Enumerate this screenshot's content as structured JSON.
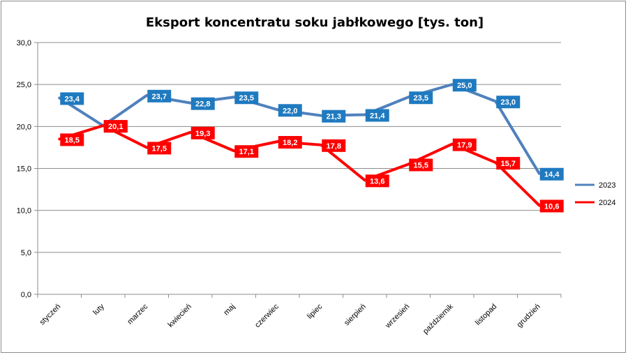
{
  "chart_data": {
    "type": "line",
    "title": "Eksport koncentratu soku jabłkowego [tys. ton]",
    "xlabel": "",
    "ylabel": "",
    "categories": [
      "styczeń",
      "luty",
      "marzec",
      "kwiecień",
      "maj",
      "czerwiec",
      "lipiec",
      "sierpień",
      "wrzesień",
      "październik",
      "listopad",
      "grudzień"
    ],
    "ylim": [
      0,
      30
    ],
    "yticks": [
      "0,0",
      "5,0",
      "10,0",
      "15,0",
      "20,0",
      "25,0",
      "30,0"
    ],
    "grid": true,
    "legend_position": "right",
    "series": [
      {
        "name": "2023",
        "color": "#4f81bd",
        "label_color": "#1f7ac0",
        "values": [
          23.4,
          20.1,
          23.7,
          22.8,
          23.5,
          22.0,
          21.3,
          21.4,
          23.5,
          25.0,
          23.0,
          14.4
        ],
        "labels": [
          "23,4",
          "20,1",
          "23,7",
          "22,8",
          "23,5",
          "22,0",
          "21,3",
          "21,4",
          "23,5",
          "25,0",
          "23,0",
          "14,4"
        ]
      },
      {
        "name": "2024",
        "color": "#ff0000",
        "label_color": "#ff0000",
        "values": [
          18.5,
          20.1,
          17.5,
          19.3,
          17.1,
          18.2,
          17.8,
          13.6,
          15.5,
          17.9,
          15.7,
          10.6
        ],
        "labels": [
          "18,5",
          "20,1",
          "17,5",
          "19,3",
          "17,1",
          "18,2",
          "17,8",
          "13,6",
          "15,5",
          "17,9",
          "15,7",
          "10,6"
        ]
      }
    ]
  }
}
